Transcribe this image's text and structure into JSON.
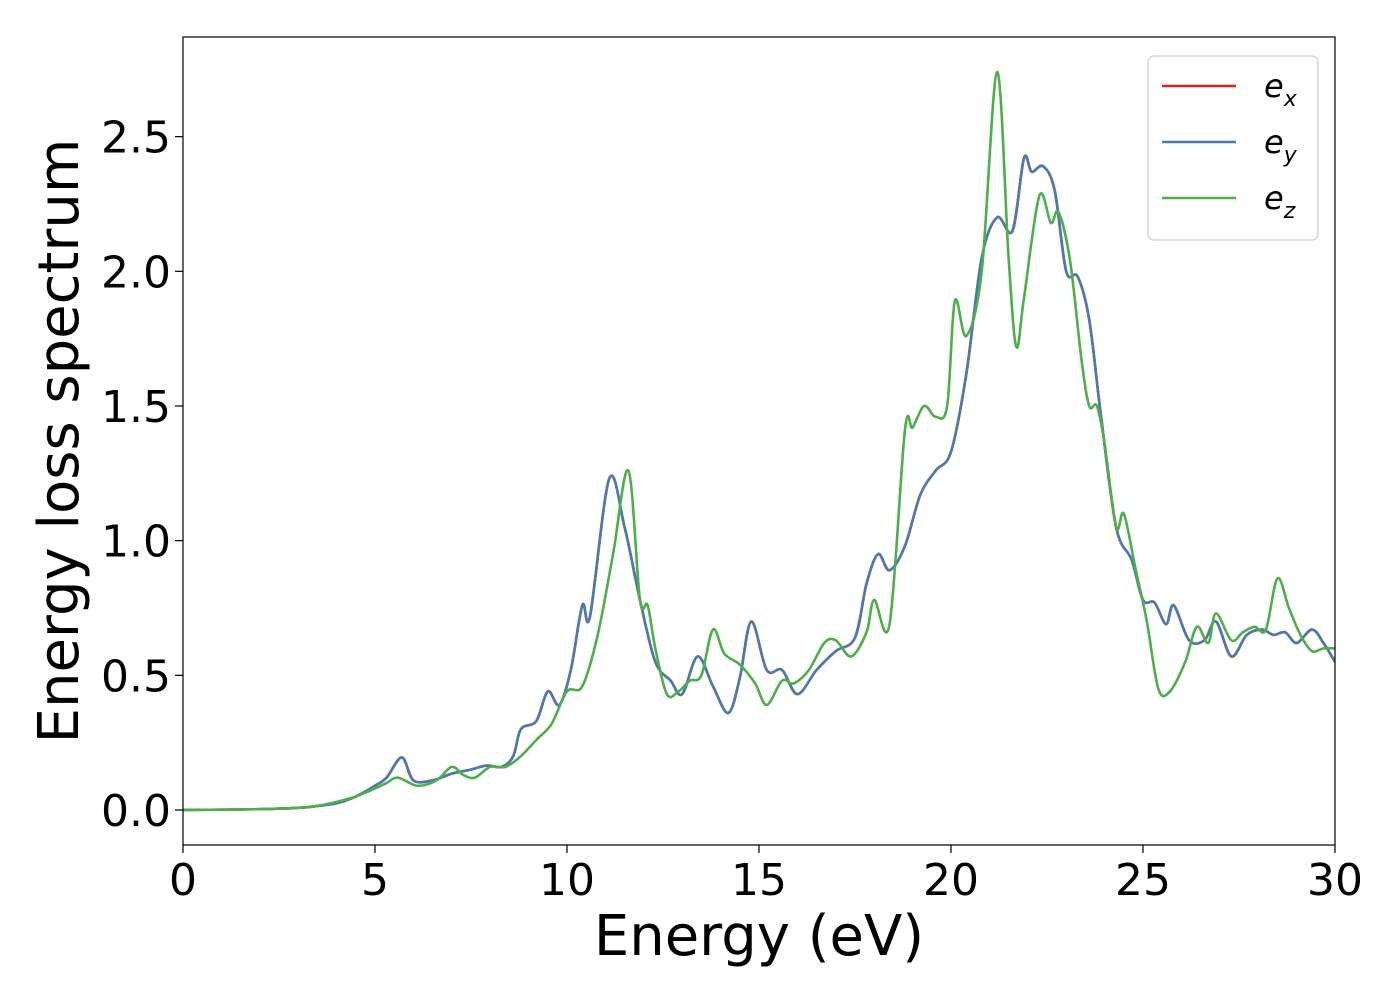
{
  "chart_data": {
    "type": "line",
    "title": "",
    "xlabel": "Energy (eV)",
    "ylabel": "Energy loss spectrum",
    "xlim": [
      0,
      30
    ],
    "ylim": [
      -0.13,
      2.87
    ],
    "xticks": [
      0,
      5,
      10,
      15,
      20,
      25,
      30
    ],
    "xtick_labels": [
      "0",
      "5",
      "10",
      "15",
      "20",
      "25",
      "30"
    ],
    "yticks": [
      0.0,
      0.5,
      1.0,
      1.5,
      2.0,
      2.5
    ],
    "ytick_labels": [
      "0.0",
      "0.5",
      "1.0",
      "1.5",
      "2.0",
      "2.5"
    ],
    "grid": false,
    "legend_position": "top-right",
    "series": [
      {
        "name": "e_x",
        "legend_base": "e",
        "legend_sub": "x",
        "color": "#e41a1c",
        "x": [
          0,
          2,
          3,
          3.5,
          4,
          4.5,
          5,
          5.3,
          5.7,
          6.0,
          6.5,
          7,
          7.5,
          7.9,
          8.3,
          8.6,
          8.8,
          9.2,
          9.5,
          9.8,
          10.1,
          10.4,
          10.6,
          11.1,
          11.5,
          11.9,
          12.3,
          12.7,
          13.0,
          13.4,
          13.8,
          14.2,
          14.5,
          14.8,
          15.2,
          15.6,
          16.0,
          16.5,
          17.0,
          17.5,
          17.8,
          18.1,
          18.4,
          18.8,
          19.2,
          19.6,
          20.0,
          20.4,
          20.8,
          21.2,
          21.6,
          21.9,
          22.1,
          22.4,
          22.7,
          23.0,
          23.3,
          23.6,
          23.9,
          24.3,
          24.7,
          25.0,
          25.3,
          25.6,
          25.8,
          26.2,
          26.6,
          26.9,
          27.3,
          27.7,
          28.1,
          28.4,
          28.7,
          29.0,
          29.4,
          29.7,
          30
        ],
        "y": [
          0,
          0.003,
          0.008,
          0.015,
          0.025,
          0.05,
          0.09,
          0.12,
          0.195,
          0.11,
          0.11,
          0.135,
          0.15,
          0.165,
          0.16,
          0.2,
          0.3,
          0.33,
          0.44,
          0.39,
          0.52,
          0.76,
          0.72,
          1.23,
          1.05,
          0.78,
          0.55,
          0.48,
          0.43,
          0.57,
          0.46,
          0.36,
          0.49,
          0.7,
          0.52,
          0.52,
          0.43,
          0.52,
          0.59,
          0.64,
          0.84,
          0.95,
          0.89,
          0.98,
          1.17,
          1.26,
          1.33,
          1.62,
          2.05,
          2.2,
          2.15,
          2.42,
          2.37,
          2.39,
          2.3,
          2.0,
          1.98,
          1.82,
          1.47,
          1.05,
          0.93,
          0.78,
          0.77,
          0.69,
          0.76,
          0.63,
          0.63,
          0.7,
          0.57,
          0.65,
          0.67,
          0.65,
          0.66,
          0.62,
          0.67,
          0.62,
          0.55
        ]
      },
      {
        "name": "e_y",
        "legend_base": "e",
        "legend_sub": "y",
        "color": "#4a7ab3",
        "x": [
          0,
          2,
          3,
          3.5,
          4,
          4.5,
          5,
          5.3,
          5.7,
          6.0,
          6.5,
          7,
          7.5,
          7.9,
          8.3,
          8.6,
          8.8,
          9.2,
          9.5,
          9.8,
          10.1,
          10.4,
          10.6,
          11.1,
          11.5,
          11.9,
          12.3,
          12.7,
          13.0,
          13.4,
          13.8,
          14.2,
          14.5,
          14.8,
          15.2,
          15.6,
          16.0,
          16.5,
          17.0,
          17.5,
          17.8,
          18.1,
          18.4,
          18.8,
          19.2,
          19.6,
          20.0,
          20.4,
          20.8,
          21.2,
          21.6,
          21.9,
          22.1,
          22.4,
          22.7,
          23.0,
          23.3,
          23.6,
          23.9,
          24.3,
          24.7,
          25.0,
          25.3,
          25.6,
          25.8,
          26.2,
          26.6,
          26.9,
          27.3,
          27.7,
          28.1,
          28.4,
          28.7,
          29.0,
          29.4,
          29.7,
          30
        ],
        "y": [
          0,
          0.003,
          0.008,
          0.015,
          0.025,
          0.05,
          0.09,
          0.12,
          0.195,
          0.11,
          0.11,
          0.135,
          0.15,
          0.165,
          0.16,
          0.2,
          0.3,
          0.33,
          0.44,
          0.39,
          0.52,
          0.76,
          0.72,
          1.23,
          1.05,
          0.78,
          0.55,
          0.48,
          0.43,
          0.57,
          0.46,
          0.36,
          0.49,
          0.7,
          0.52,
          0.52,
          0.43,
          0.52,
          0.59,
          0.64,
          0.84,
          0.95,
          0.89,
          0.98,
          1.17,
          1.26,
          1.33,
          1.62,
          2.05,
          2.2,
          2.15,
          2.42,
          2.37,
          2.39,
          2.3,
          2.0,
          1.98,
          1.82,
          1.47,
          1.05,
          0.93,
          0.78,
          0.77,
          0.69,
          0.76,
          0.63,
          0.63,
          0.7,
          0.57,
          0.65,
          0.67,
          0.65,
          0.66,
          0.62,
          0.67,
          0.62,
          0.55
        ]
      },
      {
        "name": "e_z",
        "legend_base": "e",
        "legend_sub": "z",
        "color": "#4daf4a",
        "x": [
          0,
          2,
          3,
          3.5,
          4,
          4.5,
          5,
          5.3,
          5.6,
          6.1,
          6.6,
          7.0,
          7.3,
          7.6,
          8.0,
          8.4,
          8.8,
          9.2,
          9.6,
          10.0,
          10.4,
          10.8,
          11.2,
          11.6,
          11.9,
          12.1,
          12.3,
          12.6,
          12.9,
          13.2,
          13.5,
          13.8,
          14.1,
          14.5,
          14.9,
          15.2,
          15.6,
          15.9,
          16.3,
          16.7,
          17.0,
          17.4,
          17.8,
          18.0,
          18.4,
          18.8,
          19.0,
          19.3,
          19.6,
          19.9,
          20.1,
          20.4,
          20.8,
          21.2,
          21.5,
          21.7,
          21.9,
          22.3,
          22.6,
          22.8,
          23.1,
          23.4,
          23.6,
          23.8,
          24.0,
          24.3,
          24.5,
          24.8,
          25.1,
          25.4,
          25.7,
          26.1,
          26.4,
          26.7,
          26.9,
          27.3,
          27.6,
          27.9,
          28.2,
          28.5,
          28.8,
          29.1,
          29.4,
          29.7,
          30
        ],
        "y": [
          0,
          0.003,
          0.008,
          0.015,
          0.03,
          0.05,
          0.08,
          0.1,
          0.12,
          0.09,
          0.11,
          0.16,
          0.13,
          0.12,
          0.16,
          0.16,
          0.2,
          0.26,
          0.32,
          0.44,
          0.46,
          0.65,
          0.95,
          1.26,
          0.78,
          0.76,
          0.6,
          0.43,
          0.44,
          0.48,
          0.5,
          0.67,
          0.58,
          0.54,
          0.47,
          0.39,
          0.48,
          0.47,
          0.52,
          0.62,
          0.63,
          0.57,
          0.66,
          0.78,
          0.69,
          1.41,
          1.42,
          1.5,
          1.46,
          1.5,
          1.89,
          1.76,
          2.0,
          2.74,
          2.05,
          1.72,
          1.9,
          2.28,
          2.18,
          2.22,
          2.04,
          1.67,
          1.5,
          1.5,
          1.36,
          1.05,
          1.1,
          0.9,
          0.7,
          0.45,
          0.44,
          0.55,
          0.68,
          0.62,
          0.73,
          0.63,
          0.66,
          0.68,
          0.67,
          0.86,
          0.75,
          0.65,
          0.59,
          0.6,
          0.6
        ]
      }
    ]
  }
}
